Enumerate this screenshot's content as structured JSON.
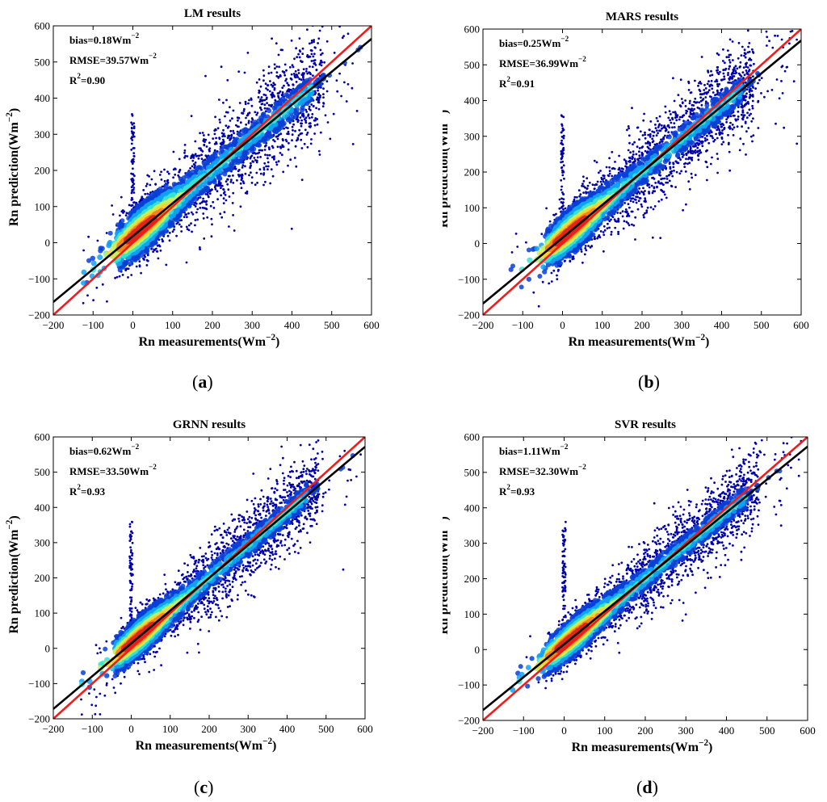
{
  "figure": {
    "labels": {
      "a": "a",
      "b": "b",
      "c": "c",
      "d": "d"
    }
  },
  "style": {
    "one_to_one_color": "#ee1c1c",
    "fit_color": "#000000",
    "point_low_color": "#00008f",
    "density_colors": [
      "#0000a8",
      "#0b3fd6",
      "#10a2f2",
      "#37e3d0",
      "#c3f062",
      "#fbd02e",
      "#f58220",
      "#e2241b"
    ]
  },
  "chart_data": [
    {
      "id": "a",
      "type": "scatter",
      "title": "LM results",
      "xlabel": "Rn measurements(Wm",
      "ylabel": "Rn prediction(Wm",
      "unit_exponent": "−2",
      "xlim": [
        -200,
        600
      ],
      "ylim": [
        -200,
        600
      ],
      "xticks": [
        -200,
        -100,
        0,
        100,
        200,
        300,
        400,
        500,
        600
      ],
      "yticks": [
        -200,
        -100,
        0,
        100,
        200,
        300,
        400,
        500,
        600
      ],
      "tick_labels": [
        "−200",
        "−100",
        "0",
        "100",
        "200",
        "300",
        "400",
        "500",
        "600"
      ],
      "stats": {
        "bias_prefix": "bias=",
        "bias": "0.18",
        "bias_unit": "Wm",
        "rmse_prefix": "RMSE=",
        "rmse": "39.57",
        "rmse_unit": "Wm",
        "r2_prefix": "R",
        "r2_sup": "2",
        "r2": "=0.90"
      },
      "one_to_one": {
        "slope": 1,
        "intercept": 0
      },
      "fit_line": {
        "slope": 0.91,
        "intercept": 18
      },
      "spread": 40
    },
    {
      "id": "b",
      "type": "scatter",
      "title": "MARS results",
      "xlabel": "Rn measurements(Wm",
      "ylabel": "Rn prediction(Wm",
      "unit_exponent": "−2",
      "xlim": [
        -200,
        600
      ],
      "ylim": [
        -200,
        600
      ],
      "xticks": [
        -200,
        -100,
        0,
        100,
        200,
        300,
        400,
        500,
        600
      ],
      "yticks": [
        -200,
        -100,
        0,
        100,
        200,
        300,
        400,
        500,
        600
      ],
      "tick_labels": [
        "−200",
        "−100",
        "0",
        "100",
        "200",
        "300",
        "400",
        "500",
        "600"
      ],
      "stats": {
        "bias_prefix": "bias=",
        "bias": "0.25",
        "bias_unit": "Wm",
        "rmse_prefix": "RMSE=",
        "rmse": "36.99",
        "rmse_unit": "Wm",
        "r2_prefix": "R",
        "r2_sup": "2",
        "r2": "=0.91"
      },
      "one_to_one": {
        "slope": 1,
        "intercept": 0
      },
      "fit_line": {
        "slope": 0.92,
        "intercept": 16
      },
      "spread": 37
    },
    {
      "id": "c",
      "type": "scatter",
      "title": "GRNN results",
      "xlabel": "Rn measurements(Wm",
      "ylabel": "Rn prediction(Wm",
      "unit_exponent": "−2",
      "xlim": [
        -200,
        600
      ],
      "ylim": [
        -200,
        600
      ],
      "xticks": [
        -200,
        -100,
        0,
        100,
        200,
        300,
        400,
        500,
        600
      ],
      "yticks": [
        -200,
        -100,
        0,
        100,
        200,
        300,
        400,
        500,
        600
      ],
      "tick_labels": [
        "−200",
        "−100",
        "0",
        "100",
        "200",
        "300",
        "400",
        "500",
        "600"
      ],
      "stats": {
        "bias_prefix": "bias=",
        "bias": "0.62",
        "bias_unit": "Wm",
        "rmse_prefix": "RMSE=",
        "rmse": "33.50",
        "rmse_unit": "Wm",
        "r2_prefix": "R",
        "r2_sup": "2",
        "r2": "=0.93"
      },
      "one_to_one": {
        "slope": 1,
        "intercept": 0
      },
      "fit_line": {
        "slope": 0.93,
        "intercept": 14
      },
      "spread": 33
    },
    {
      "id": "d",
      "type": "scatter",
      "title": "SVR results",
      "xlabel": "Rn measurements(Wm",
      "ylabel": "Rn prediction(Wm",
      "unit_exponent": "−2",
      "xlim": [
        -200,
        600
      ],
      "ylim": [
        -200,
        600
      ],
      "xticks": [
        -200,
        -100,
        0,
        100,
        200,
        300,
        400,
        500,
        600
      ],
      "yticks": [
        -200,
        -100,
        0,
        100,
        200,
        300,
        400,
        500,
        600
      ],
      "tick_labels": [
        "−200",
        "−100",
        "0",
        "100",
        "200",
        "300",
        "400",
        "500",
        "600"
      ],
      "stats": {
        "bias_prefix": "bias=",
        "bias": "1.11",
        "bias_unit": "Wm",
        "rmse_prefix": "RMSE=",
        "rmse": "32.30",
        "rmse_unit": "Wm",
        "r2_prefix": "R",
        "r2_sup": "2",
        "r2": "=0.93"
      },
      "one_to_one": {
        "slope": 1,
        "intercept": 0
      },
      "fit_line": {
        "slope": 0.93,
        "intercept": 15
      },
      "spread": 32
    }
  ]
}
